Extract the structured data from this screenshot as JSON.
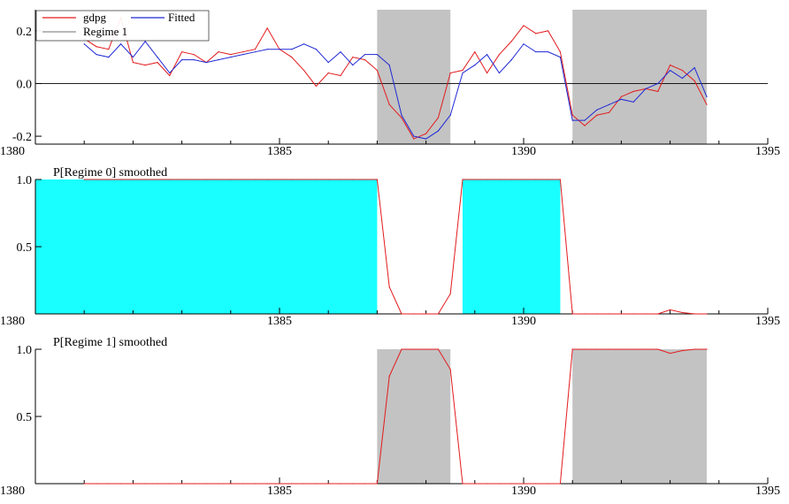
{
  "colors": {
    "gdpg": "#e31a1c",
    "fitted": "#1f28d4",
    "regime1_shade": "#b8b8b8",
    "regime0_fill": "#00ffff",
    "zero_line": "#000000"
  },
  "chart_data": [
    {
      "type": "line",
      "title": "",
      "xlim": [
        1380,
        1395
      ],
      "ylim": [
        -0.23,
        0.28
      ],
      "x_ticks": [
        1380,
        1385,
        1390,
        1395
      ],
      "x_tick_labels": [
        "1380",
        "1385",
        "1390",
        "1395"
      ],
      "y_ticks": [
        0.2,
        0.0,
        -0.2
      ],
      "y_tick_labels": [
        "0.2",
        "0.0",
        "-0.2"
      ],
      "zero_line": true,
      "legend": {
        "placement": "top-left",
        "entries": [
          {
            "label": "gdpg",
            "key": "gdpg"
          },
          {
            "label": "Fitted",
            "key": "fitted"
          },
          {
            "label": "Regime 1",
            "key": "regime1"
          }
        ]
      },
      "shaded_regions": [
        [
          1387.0,
          1388.5
        ],
        [
          1391.0,
          1393.75
        ]
      ],
      "x": [
        1381.0,
        1381.25,
        1381.5,
        1381.75,
        1382.0,
        1382.25,
        1382.5,
        1382.75,
        1383.0,
        1383.25,
        1383.5,
        1383.75,
        1384.0,
        1384.25,
        1384.5,
        1384.75,
        1385.0,
        1385.25,
        1385.5,
        1385.75,
        1386.0,
        1386.25,
        1386.5,
        1386.75,
        1387.0,
        1387.25,
        1387.5,
        1387.75,
        1388.0,
        1388.25,
        1388.5,
        1388.75,
        1389.0,
        1389.25,
        1389.5,
        1389.75,
        1390.0,
        1390.25,
        1390.5,
        1390.75,
        1391.0,
        1391.25,
        1391.5,
        1391.75,
        1392.0,
        1392.25,
        1392.5,
        1392.75,
        1393.0,
        1393.25,
        1393.5,
        1393.75
      ],
      "series": [
        {
          "name": "gdpg",
          "key": "gdpg",
          "values": [
            0.17,
            0.14,
            0.13,
            0.25,
            0.08,
            0.07,
            0.08,
            0.03,
            0.12,
            0.11,
            0.08,
            0.12,
            0.11,
            0.12,
            0.13,
            0.21,
            0.13,
            0.1,
            0.05,
            -0.01,
            0.04,
            0.03,
            0.1,
            0.09,
            0.05,
            -0.08,
            -0.13,
            -0.21,
            -0.19,
            -0.13,
            0.04,
            0.05,
            0.12,
            0.04,
            0.11,
            0.16,
            0.22,
            0.19,
            0.2,
            0.12,
            -0.12,
            -0.16,
            -0.12,
            -0.11,
            -0.05,
            -0.03,
            -0.02,
            -0.03,
            0.07,
            0.05,
            0.01,
            -0.08
          ]
        },
        {
          "name": "Fitted",
          "key": "fitted",
          "values": [
            0.15,
            0.11,
            0.1,
            0.15,
            0.1,
            0.16,
            0.1,
            0.04,
            0.09,
            0.09,
            0.08,
            0.09,
            0.1,
            0.11,
            0.12,
            0.13,
            0.13,
            0.13,
            0.15,
            0.13,
            0.08,
            0.12,
            0.07,
            0.11,
            0.11,
            0.07,
            -0.12,
            -0.2,
            -0.21,
            -0.18,
            -0.12,
            0.04,
            0.07,
            0.11,
            0.04,
            0.09,
            0.15,
            0.12,
            0.12,
            0.1,
            -0.14,
            -0.14,
            -0.1,
            -0.08,
            -0.06,
            -0.07,
            -0.02,
            0.0,
            0.05,
            0.02,
            0.06,
            -0.05
          ]
        }
      ]
    },
    {
      "type": "area",
      "title": "P[Regime 0] smoothed",
      "xlim": [
        1380,
        1395
      ],
      "ylim": [
        0,
        1
      ],
      "x_ticks": [
        1380,
        1385,
        1390,
        1395
      ],
      "x_tick_labels": [
        "1380",
        "1385",
        "1390",
        "1395"
      ],
      "y_ticks": [
        1.0,
        0.5
      ],
      "y_tick_labels": [
        "1.0",
        "0.5"
      ],
      "fill_regions": [
        [
          1380.0,
          1387.0
        ],
        [
          1388.75,
          1390.75
        ]
      ],
      "x": [
        1381.0,
        1381.25,
        1381.5,
        1381.75,
        1382.0,
        1382.25,
        1382.5,
        1382.75,
        1383.0,
        1383.25,
        1383.5,
        1383.75,
        1384.0,
        1384.25,
        1384.5,
        1384.75,
        1385.0,
        1385.25,
        1385.5,
        1385.75,
        1386.0,
        1386.25,
        1386.5,
        1386.75,
        1387.0,
        1387.25,
        1387.5,
        1387.75,
        1388.0,
        1388.25,
        1388.5,
        1388.75,
        1389.0,
        1389.25,
        1389.5,
        1389.75,
        1390.0,
        1390.25,
        1390.5,
        1390.75,
        1391.0,
        1391.25,
        1391.5,
        1391.75,
        1392.0,
        1392.25,
        1392.5,
        1392.75,
        1393.0,
        1393.25,
        1393.5,
        1393.75
      ],
      "series": [
        {
          "key": "gdpg",
          "values": [
            1,
            1,
            1,
            1,
            1,
            1,
            1,
            1,
            1,
            1,
            1,
            1,
            1,
            1,
            1,
            1,
            1,
            1,
            1,
            1,
            1,
            1,
            1,
            1,
            1,
            0.2,
            0,
            0,
            0,
            0,
            0.15,
            1,
            1,
            1,
            1,
            1,
            1,
            1,
            1,
            1,
            0,
            0,
            0,
            0,
            0,
            0,
            0,
            0,
            0.03,
            0.01,
            0,
            0
          ]
        }
      ]
    },
    {
      "type": "line",
      "title": "P[Regime 1] smoothed",
      "xlim": [
        1380,
        1395
      ],
      "ylim": [
        0,
        1
      ],
      "x_ticks": [
        1380,
        1385,
        1390,
        1395
      ],
      "x_tick_labels": [
        "1380",
        "1385",
        "1390",
        "1395"
      ],
      "y_ticks": [
        1.0,
        0.5
      ],
      "y_tick_labels": [
        "1.0",
        "0.5"
      ],
      "shaded_regions": [
        [
          1387.0,
          1388.5
        ],
        [
          1391.0,
          1393.75
        ]
      ],
      "x": [
        1381.0,
        1381.25,
        1381.5,
        1381.75,
        1382.0,
        1382.25,
        1382.5,
        1382.75,
        1383.0,
        1383.25,
        1383.5,
        1383.75,
        1384.0,
        1384.25,
        1384.5,
        1384.75,
        1385.0,
        1385.25,
        1385.5,
        1385.75,
        1386.0,
        1386.25,
        1386.5,
        1386.75,
        1387.0,
        1387.25,
        1387.5,
        1387.75,
        1388.0,
        1388.25,
        1388.5,
        1388.75,
        1389.0,
        1389.25,
        1389.5,
        1389.75,
        1390.0,
        1390.25,
        1390.5,
        1390.75,
        1391.0,
        1391.25,
        1391.5,
        1391.75,
        1392.0,
        1392.25,
        1392.5,
        1392.75,
        1393.0,
        1393.25,
        1393.5,
        1393.75
      ],
      "series": [
        {
          "key": "gdpg",
          "values": [
            0,
            0,
            0,
            0,
            0,
            0,
            0,
            0,
            0,
            0,
            0,
            0,
            0,
            0,
            0,
            0,
            0,
            0,
            0,
            0,
            0,
            0,
            0,
            0,
            0,
            0.8,
            1,
            1,
            1,
            1,
            0.85,
            0,
            0,
            0,
            0,
            0,
            0,
            0,
            0,
            0,
            1,
            1,
            1,
            1,
            1,
            1,
            1,
            1,
            0.97,
            0.99,
            1,
            1
          ]
        }
      ]
    }
  ]
}
